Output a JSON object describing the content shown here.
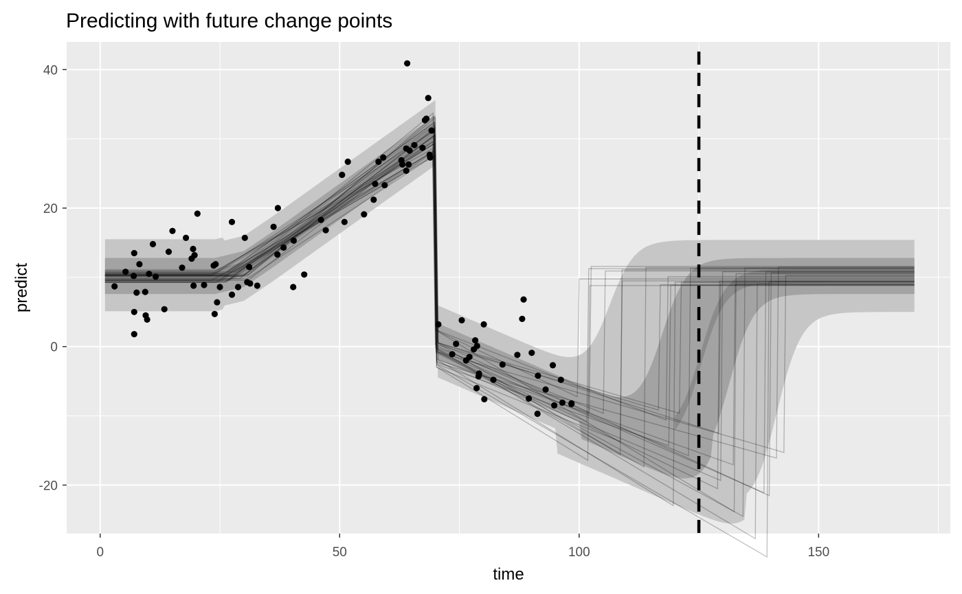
{
  "chart_data": {
    "type": "line",
    "title": "Predicting with future change points",
    "xlabel": "time",
    "ylabel": "predict",
    "xlim": [
      -7,
      177.5
    ],
    "ylim": [
      -27,
      44
    ],
    "x_ticks": [
      0,
      50,
      100,
      150
    ],
    "y_ticks": [
      -20,
      0,
      20,
      40
    ],
    "x_tick_labels": [
      "0",
      "50",
      "100",
      "150"
    ],
    "y_tick_labels": [
      "-20",
      "0",
      "20",
      "40"
    ],
    "grid": true,
    "legend": "none",
    "background": "#ebebeb",
    "vline": {
      "x": 125,
      "style": "dashed",
      "color": "#000000"
    },
    "observed_points": [
      [
        3,
        8.7
      ],
      [
        5.3,
        10.8
      ],
      [
        7,
        10.2
      ],
      [
        7.1,
        13.5
      ],
      [
        7.1,
        5
      ],
      [
        7.1,
        1.8
      ],
      [
        7.6,
        7.8
      ],
      [
        8.2,
        11.9
      ],
      [
        9.4,
        7.9
      ],
      [
        9.5,
        4.5
      ],
      [
        9.8,
        3.9
      ],
      [
        10.2,
        10.5
      ],
      [
        11,
        14.8
      ],
      [
        11.6,
        10.1
      ],
      [
        13.4,
        5.4
      ],
      [
        14.3,
        13.7
      ],
      [
        15.1,
        16.7
      ],
      [
        17.1,
        11.4
      ],
      [
        17.9,
        15.7
      ],
      [
        19.1,
        12.7
      ],
      [
        19.4,
        14.1
      ],
      [
        19.5,
        8.8
      ],
      [
        19.7,
        13.2
      ],
      [
        20.3,
        19.2
      ],
      [
        21.7,
        8.9
      ],
      [
        23.7,
        11.7
      ],
      [
        23.9,
        4.7
      ],
      [
        24.1,
        11.9
      ],
      [
        24.4,
        6.4
      ],
      [
        25,
        8.6
      ],
      [
        27.5,
        7.5
      ],
      [
        27.5,
        18
      ],
      [
        28.8,
        8.6
      ],
      [
        30.2,
        15.7
      ],
      [
        30.7,
        9.3
      ],
      [
        31.1,
        11.5
      ],
      [
        31.3,
        9.1
      ],
      [
        32.8,
        8.8
      ],
      [
        36.2,
        17.3
      ],
      [
        37,
        13.3
      ],
      [
        37.1,
        20
      ],
      [
        38.3,
        14.3
      ],
      [
        40.4,
        15.3
      ],
      [
        40.3,
        8.6
      ],
      [
        42.6,
        10.4
      ],
      [
        46.1,
        18.3
      ],
      [
        47.1,
        16.8
      ],
      [
        50.5,
        24.8
      ],
      [
        51,
        18
      ],
      [
        51.7,
        26.7
      ],
      [
        55.1,
        19.1
      ],
      [
        57.1,
        21.2
      ],
      [
        57.4,
        23.5
      ],
      [
        58.1,
        26.7
      ],
      [
        59.1,
        27.3
      ],
      [
        59.4,
        23.3
      ],
      [
        62.9,
        26.9
      ],
      [
        63.1,
        26.3
      ],
      [
        63.9,
        25.4
      ],
      [
        63.9,
        28.6
      ],
      [
        64.1,
        40.9
      ],
      [
        64.4,
        26.3
      ],
      [
        64.6,
        28.3
      ],
      [
        65.6,
        29.1
      ],
      [
        67.3,
        28.7
      ],
      [
        67.8,
        32.7
      ],
      [
        68.1,
        32.9
      ],
      [
        68.5,
        35.9
      ],
      [
        68.8,
        27.7
      ],
      [
        68.9,
        27.3
      ],
      [
        69.2,
        31.2
      ],
      [
        70.6,
        3.2
      ],
      [
        73.5,
        -1.1
      ],
      [
        74.3,
        0.4
      ],
      [
        75.5,
        3.8
      ],
      [
        76.4,
        -2
      ],
      [
        77.1,
        -1.5
      ],
      [
        78,
        -0.4
      ],
      [
        78.3,
        0.9
      ],
      [
        78.6,
        -6
      ],
      [
        78.7,
        0.1
      ],
      [
        79,
        -4.3
      ],
      [
        79.1,
        -3.9
      ],
      [
        80.1,
        3.2
      ],
      [
        80.2,
        -7.6
      ],
      [
        82.1,
        -4.8
      ],
      [
        84,
        -2.6
      ],
      [
        87.1,
        -1.2
      ],
      [
        88.1,
        4
      ],
      [
        88.4,
        6.8
      ],
      [
        89.5,
        -7.5
      ],
      [
        90.1,
        -0.9
      ],
      [
        91.3,
        -9.7
      ],
      [
        91.4,
        -4.2
      ],
      [
        93,
        -6.2
      ],
      [
        94.5,
        -2.7
      ],
      [
        94.8,
        -8.5
      ],
      [
        96.2,
        -4.8
      ],
      [
        96.5,
        -8.1
      ],
      [
        98.4,
        -8.2
      ],
      [
        98.4,
        -8.3
      ]
    ]
  }
}
